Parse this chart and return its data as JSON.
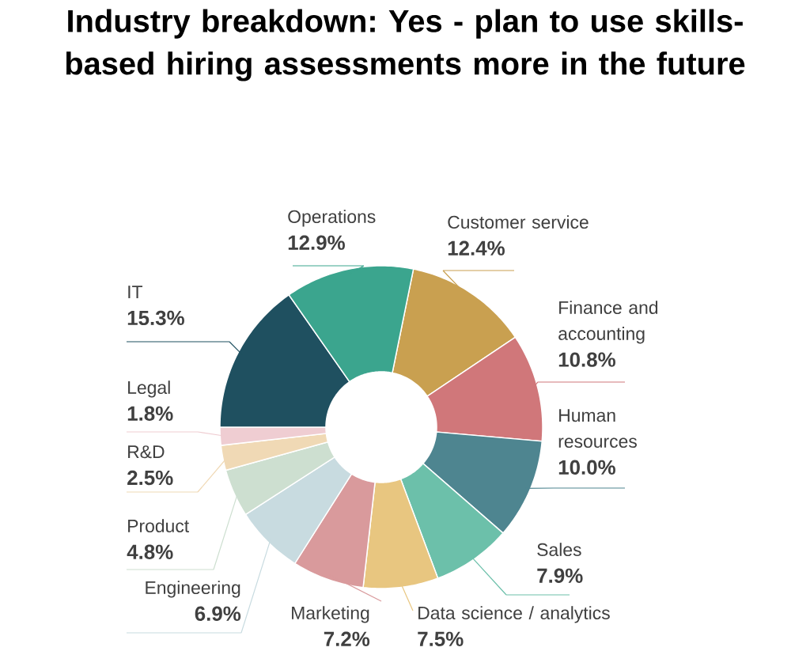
{
  "chart_data": {
    "type": "donut",
    "title": "Industry breakdown: Yes - plan to use skills-based hiring assessments more in the future",
    "categories": [
      "Customer service",
      "Finance and accounting",
      "Human resources",
      "Sales",
      "Data science / analytics",
      "Marketing",
      "Engineering",
      "Product",
      "R&D",
      "Legal",
      "IT",
      "Operations"
    ],
    "values": [
      12.4,
      10.8,
      10.0,
      7.9,
      7.5,
      7.2,
      6.9,
      4.8,
      2.5,
      1.8,
      15.3,
      12.9
    ],
    "value_labels": [
      "12.4%",
      "10.8%",
      "10.0%",
      "7.9%",
      "7.5%",
      "7.2%",
      "6.9%",
      "4.8%",
      "2.5%",
      "1.8%",
      "15.3%",
      "12.9%"
    ],
    "colors": [
      "#c9a050",
      "#d0777a",
      "#4e8590",
      "#6cc0aa",
      "#e8c680",
      "#d99a9c",
      "#c8dbe0",
      "#cddfd0",
      "#f0d9b5",
      "#efcdd2",
      "#1f5060",
      "#3ba58e"
    ]
  }
}
